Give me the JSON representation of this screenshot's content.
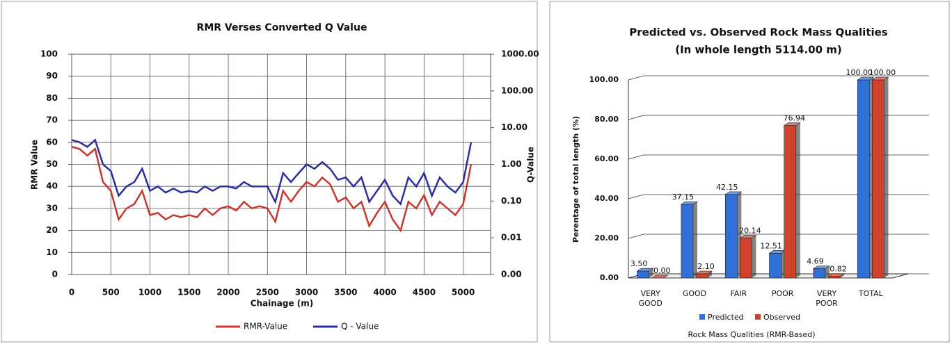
{
  "chart_data": [
    {
      "type": "line",
      "title": "RMR Verses  Converted Q Value",
      "x_label": "Chainage (m)",
      "y_label": "RMR Value",
      "y2_label": "Q-Value",
      "x": [
        0,
        100,
        200,
        300,
        400,
        500,
        600,
        700,
        800,
        900,
        1000,
        1100,
        1200,
        1300,
        1400,
        1500,
        1600,
        1700,
        1800,
        1900,
        2000,
        2100,
        2200,
        2300,
        2400,
        2500,
        2600,
        2700,
        2800,
        2900,
        3000,
        3100,
        3200,
        3300,
        3400,
        3500,
        3600,
        3700,
        3800,
        3900,
        4000,
        4100,
        4200,
        4300,
        4400,
        4500,
        4600,
        4700,
        4800,
        4900,
        5000,
        5100
      ],
      "series": [
        {
          "name": "RMR-Value",
          "color": "#c8372d",
          "values": [
            58,
            57,
            54,
            57,
            42,
            38,
            25,
            30,
            32,
            38,
            27,
            28,
            25,
            27,
            26,
            27,
            26,
            30,
            27,
            30,
            31,
            29,
            33,
            30,
            31,
            30,
            24,
            38,
            33,
            38,
            42,
            40,
            44,
            41,
            33,
            35,
            30,
            33,
            22,
            28,
            33,
            25,
            20,
            33,
            30,
            36,
            27,
            33,
            30,
            27,
            32,
            50
          ]
        },
        {
          "name": "Q - Value",
          "color": "#2b2f9e",
          "axis": "y2",
          "values": [
            4.6,
            4.0,
            3.0,
            4.6,
            1.0,
            0.66,
            0.14,
            0.25,
            0.33,
            0.76,
            0.19,
            0.25,
            0.17,
            0.22,
            0.17,
            0.19,
            0.17,
            0.25,
            0.19,
            0.25,
            0.25,
            0.22,
            0.33,
            0.25,
            0.25,
            0.25,
            0.095,
            0.58,
            0.33,
            0.58,
            1.0,
            0.76,
            1.15,
            0.76,
            0.38,
            0.44,
            0.25,
            0.44,
            0.095,
            0.19,
            0.38,
            0.14,
            0.083,
            0.44,
            0.25,
            0.58,
            0.14,
            0.44,
            0.25,
            0.17,
            0.33,
            4.0
          ]
        }
      ],
      "xlim": [
        0,
        5350
      ],
      "xticks": [
        0,
        500,
        1000,
        1500,
        2000,
        2500,
        3000,
        3500,
        4000,
        4500,
        5000
      ],
      "ylim": [
        0,
        100
      ],
      "yticks": [
        0,
        10,
        20,
        30,
        40,
        50,
        60,
        70,
        80,
        90,
        100
      ],
      "y2lim": [
        0.001,
        1000
      ],
      "y2scale": "log",
      "y2ticks": [
        {
          "value": 0.001,
          "label": "0.00"
        },
        {
          "value": 0.01,
          "label": "0.01"
        },
        {
          "value": 0.1,
          "label": "0.10"
        },
        {
          "value": 1,
          "label": "1.00"
        },
        {
          "value": 10,
          "label": "10.00"
        },
        {
          "value": 100,
          "label": "100.00"
        },
        {
          "value": 1000,
          "label": "1000.00"
        }
      ],
      "grid": true
    },
    {
      "type": "bar",
      "title": "Predicted vs. Observed Rock Mass Qualities",
      "subtitle": "(In whole length 5114.00 m)",
      "x_label": "Rock Mass Qualities (RMR-Based)",
      "y_label": "Perentage of total length (%)",
      "categories": [
        "VERY GOOD",
        "GOOD",
        "FAIR",
        "POOR",
        "VERY POOR",
        "TOTAL"
      ],
      "series": [
        {
          "name": "Predicted",
          "color": "#2f6fd6",
          "values": [
            3.5,
            37.15,
            42.15,
            12.51,
            4.69,
            100
          ],
          "value_labels": [
            "3.50",
            "37.15",
            "42.15",
            "12.51",
            "4.69",
            "100.00"
          ]
        },
        {
          "name": "Observed",
          "color": "#d0412e",
          "values": [
            0,
            2.1,
            20.14,
            76.94,
            0.82,
            100
          ],
          "value_labels": [
            "0.00",
            "2.10",
            "20.14",
            "76.94",
            "0.82",
            "100.00"
          ]
        }
      ],
      "ylim": [
        0,
        100
      ],
      "yticks": [
        {
          "value": 0,
          "label": "0.00"
        },
        {
          "value": 20,
          "label": "20.00"
        },
        {
          "value": 40,
          "label": "40.00"
        },
        {
          "value": 60,
          "label": "60.00"
        },
        {
          "value": 80,
          "label": "80.00"
        },
        {
          "value": 100,
          "label": "100.00"
        }
      ],
      "grid": true
    }
  ]
}
